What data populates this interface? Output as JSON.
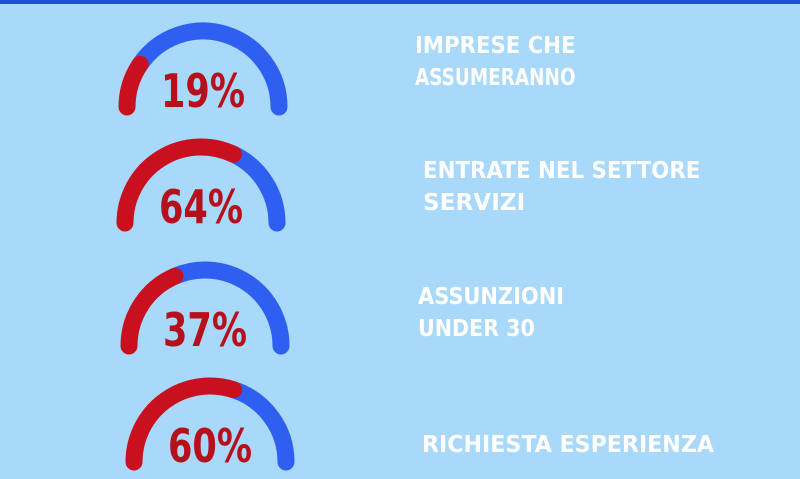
{
  "chart_data": [
    {
      "type": "gauge",
      "title": [
        "IMPRESE CHE",
        "ASSUMERANNO"
      ],
      "values": [
        19
      ],
      "value_labels": [
        "19%"
      ],
      "ylim": [
        0,
        100
      ],
      "color": "#c8101e",
      "track_color": "#2f5ff0"
    },
    {
      "type": "gauge",
      "title": [
        "ENTRATE NEL SETTORE",
        "SERVIZI"
      ],
      "values": [
        64
      ],
      "value_labels": [
        "64%"
      ],
      "ylim": [
        0,
        100
      ],
      "color": "#c8101e",
      "track_color": "#2f5ff0"
    },
    {
      "type": "gauge",
      "title": [
        "ASSUNZIONI",
        "UNDER 30"
      ],
      "values": [
        37
      ],
      "value_labels": [
        "37%"
      ],
      "ylim": [
        0,
        100
      ],
      "color": "#c8101e",
      "track_color": "#2f5ff0"
    },
    {
      "type": "gauge",
      "title": [
        "RICHIESTA ESPERIENZA"
      ],
      "values": [
        60
      ],
      "value_labels": [
        "60%"
      ],
      "ylim": [
        0,
        100
      ],
      "color": "#c8101e",
      "track_color": "#2f5ff0"
    }
  ]
}
